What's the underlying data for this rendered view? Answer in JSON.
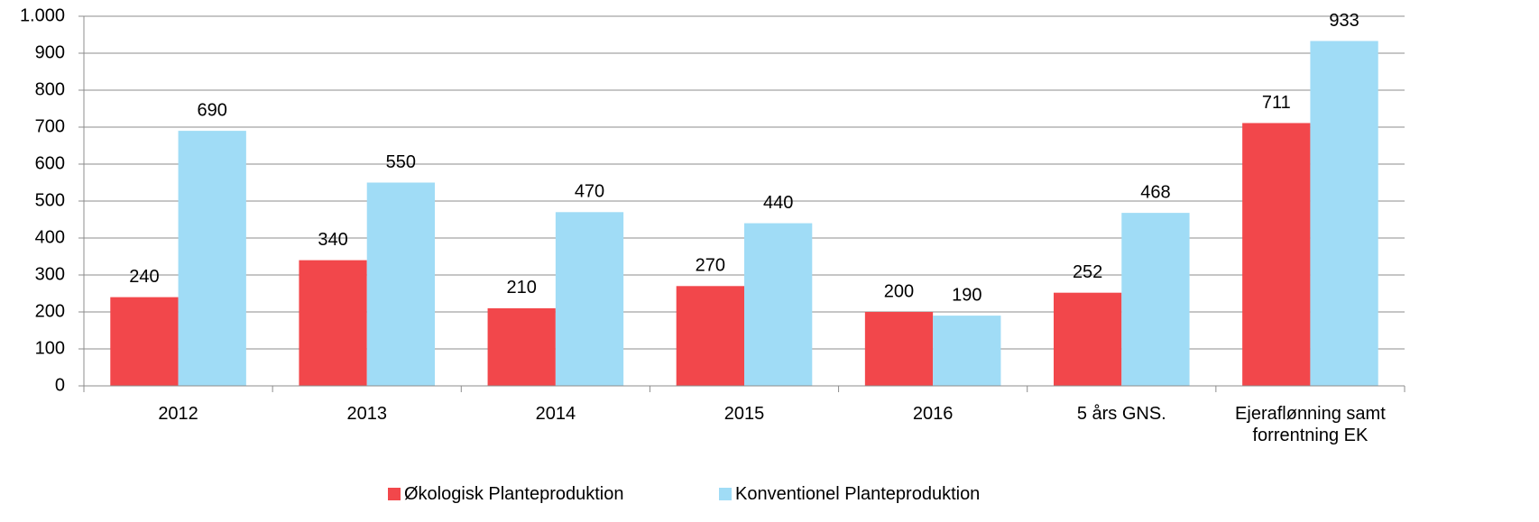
{
  "chart_data": {
    "type": "bar",
    "categories": [
      "2012",
      "2013",
      "2014",
      "2015",
      "2016",
      "5 års GNS.",
      "Ejeraflønning samt forrentning EK"
    ],
    "series": [
      {
        "name": "Økologisk Planteproduktion",
        "color": "#f2474b",
        "values": [
          240,
          340,
          210,
          270,
          200,
          252,
          711
        ]
      },
      {
        "name": "Konventionel Planteproduktion",
        "color": "#a0dcf6",
        "values": [
          690,
          550,
          470,
          440,
          190,
          468,
          933
        ]
      }
    ],
    "ylim": [
      0,
      1000
    ],
    "yticks": [
      0,
      100,
      200,
      300,
      400,
      500,
      600,
      700,
      800,
      900,
      {
        "value": 1000,
        "label": "1.000"
      }
    ],
    "grid": true,
    "legend": "bottom"
  }
}
